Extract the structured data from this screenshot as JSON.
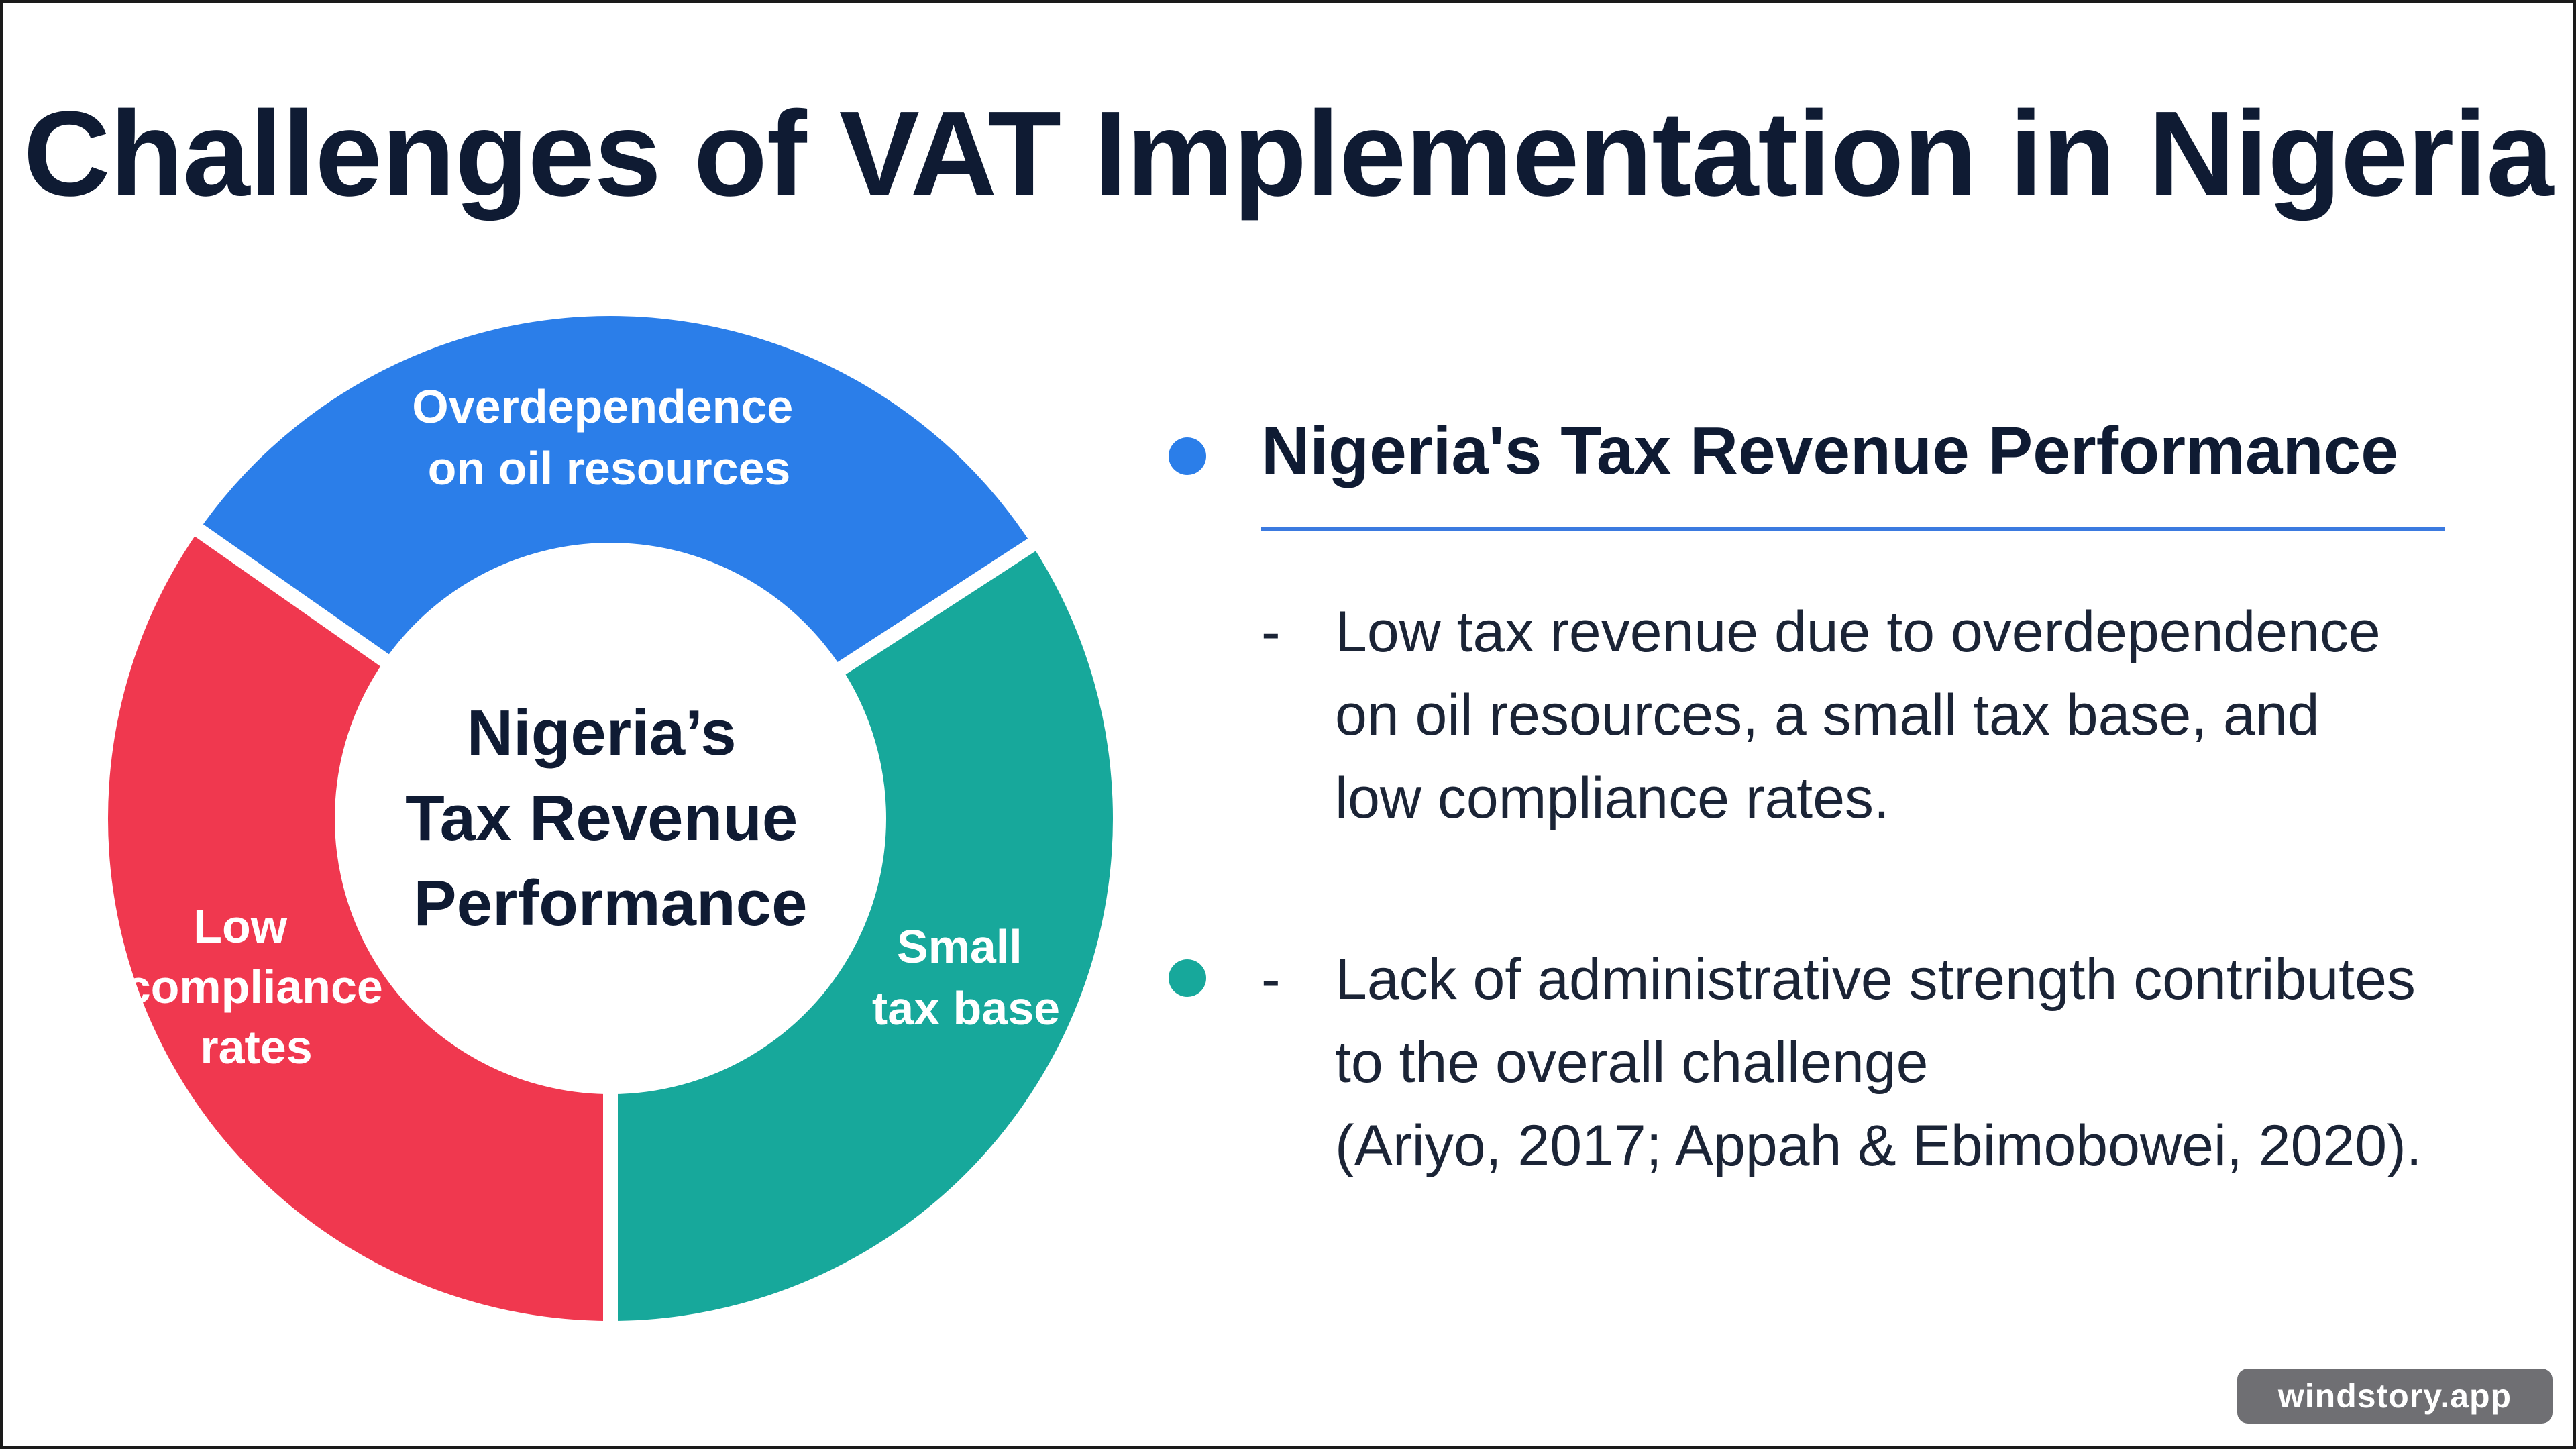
{
  "title": "Challenges of VAT Implementation in Nigeria",
  "diagram": {
    "center_lines": [
      "Nigeria’s",
      "Tax Revenue",
      "Performance"
    ],
    "segments": [
      {
        "name": "overdependence-on-oil",
        "lines": [
          "Overdependence",
          "on oil resources"
        ],
        "color": "#2b7ee9"
      },
      {
        "name": "small-tax-base",
        "lines": [
          "Small",
          "tax base"
        ],
        "color": "#17a89b"
      },
      {
        "name": "low-compliance",
        "lines": [
          "Low",
          "compliance",
          "rates"
        ],
        "color": "#f0384f"
      }
    ]
  },
  "panel": {
    "heading": "Nigeria's Tax Revenue Performance",
    "dot_colors": [
      "#2b7ee9",
      "#17a89b"
    ],
    "rule_color": "#3b7ae0",
    "items": [
      {
        "dash": "-",
        "lines": [
          "Low tax revenue due to overdependence",
          "on oil resources, a small tax base, and",
          "low compliance rates."
        ]
      },
      {
        "dash": "-",
        "lines": [
          "Lack of administrative strength contributes",
          "to the overall challenge",
          "(Ariyo, 2017; Appah & Ebimobowei, 2020)."
        ]
      }
    ]
  },
  "watermark": "windstory.app"
}
